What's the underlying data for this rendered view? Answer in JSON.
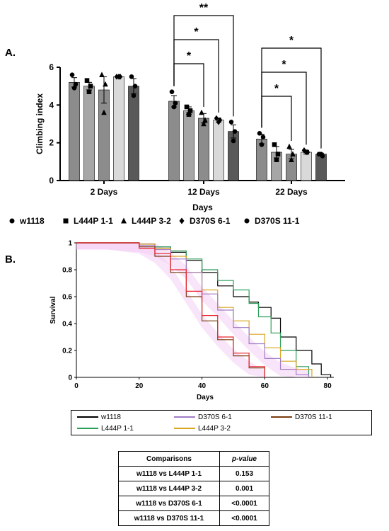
{
  "panel_a_label": "A.",
  "panel_b_label": "B.",
  "chart_data": [
    {
      "type": "bar",
      "ylabel": "Climbing index",
      "xlabel": "Days",
      "ylim": [
        0,
        6
      ],
      "yticks": [
        "0",
        "2",
        "4",
        "6"
      ],
      "categories": [
        "2 Days",
        "12 Days",
        "22 Days"
      ],
      "series": [
        {
          "name": "w1118",
          "marker": "circle",
          "color": "#8c8c8c",
          "values": [
            5.2,
            4.2,
            2.2
          ],
          "errors": [
            0.25,
            0.3,
            0.25
          ],
          "points": [
            [
              5.6,
              5.1,
              4.9
            ],
            [
              4.7,
              4.1,
              3.9
            ],
            [
              2.5,
              2.3,
              1.9
            ]
          ]
        },
        {
          "name": "L444P 1-1",
          "marker": "square",
          "color": "#a6a6a6",
          "values": [
            5.0,
            3.7,
            1.5
          ],
          "errors": [
            0.2,
            0.2,
            0.3
          ],
          "points": [
            [
              5.3,
              5.0,
              4.7
            ],
            [
              3.9,
              3.7,
              3.5
            ],
            [
              1.9,
              1.4,
              1.1
            ]
          ]
        },
        {
          "name": "L444P 3-2",
          "marker": "triangle",
          "color": "#8c8c8c",
          "values": [
            4.8,
            3.3,
            1.4
          ],
          "errors": [
            0.7,
            0.25,
            0.25
          ],
          "points": [
            [
              5.6,
              5.1,
              3.6
            ],
            [
              3.6,
              3.2,
              3.0
            ],
            [
              1.8,
              1.4,
              1.1
            ]
          ]
        },
        {
          "name": "D370S 6-1",
          "marker": "diamond",
          "color": "#d9d9d9",
          "values": [
            5.5,
            3.2,
            1.5
          ],
          "errors": [
            0.05,
            0.1,
            0.1
          ],
          "points": [
            [
              5.5,
              5.5,
              5.5
            ],
            [
              3.3,
              3.2,
              3.1
            ],
            [
              1.6,
              1.5,
              1.5
            ]
          ]
        },
        {
          "name": "D370S 11-1",
          "marker": "circle",
          "color": "#595959",
          "values": [
            5.0,
            2.6,
            1.4
          ],
          "errors": [
            0.4,
            0.35,
            0.05
          ],
          "points": [
            [
              5.5,
              5.0,
              4.5
            ],
            [
              3.1,
              2.6,
              2.1
            ],
            [
              1.4,
              1.3,
              1.4
            ]
          ]
        }
      ],
      "significance": [
        {
          "group": "12 Days",
          "from": "w1118",
          "to": "L444P 3-2",
          "label": "*"
        },
        {
          "group": "12 Days",
          "from": "w1118",
          "to": "D370S 6-1",
          "label": "*"
        },
        {
          "group": "12 Days",
          "from": "w1118",
          "to": "D370S 11-1",
          "label": "**"
        },
        {
          "group": "22 Days",
          "from": "w1118",
          "to": "L444P 3-2",
          "label": "*"
        },
        {
          "group": "22 Days",
          "from": "w1118",
          "to": "D370S 6-1",
          "label": "*"
        },
        {
          "group": "22 Days",
          "from": "w1118",
          "to": "D370S 11-1",
          "label": "*"
        }
      ],
      "legend": "bottom"
    },
    {
      "type": "line",
      "step": true,
      "ylabel": "Survival",
      "xlabel": "Days",
      "xlim": [
        0,
        82
      ],
      "ylim": [
        0,
        1
      ],
      "xticks": [
        0,
        20,
        40,
        60,
        80
      ],
      "yticks": [
        "0",
        "0.2",
        "0.4",
        "0.6",
        "0.8",
        "1"
      ],
      "series": [
        {
          "name": "w1118",
          "color": "#000000",
          "x": [
            0,
            10,
            20,
            25,
            30,
            35,
            40,
            45,
            50,
            55,
            58,
            62,
            65,
            70,
            75,
            78,
            81
          ],
          "y": [
            1,
            1,
            0.99,
            0.97,
            0.93,
            0.87,
            0.78,
            0.68,
            0.6,
            0.56,
            0.52,
            0.44,
            0.3,
            0.2,
            0.1,
            0.02,
            0
          ]
        },
        {
          "name": "L444P 1-1",
          "color": "#2e9e5b",
          "x": [
            0,
            10,
            20,
            25,
            30,
            35,
            40,
            45,
            50,
            55,
            58,
            62,
            65,
            70,
            74
          ],
          "y": [
            1,
            1,
            0.99,
            0.97,
            0.94,
            0.88,
            0.8,
            0.72,
            0.65,
            0.55,
            0.45,
            0.33,
            0.2,
            0.08,
            0
          ]
        },
        {
          "name": "L444P 3-2",
          "color": "#d9a520",
          "x": [
            0,
            10,
            20,
            25,
            30,
            35,
            40,
            45,
            50,
            55,
            60,
            65,
            70,
            75
          ],
          "y": [
            1,
            1,
            0.99,
            0.96,
            0.9,
            0.78,
            0.65,
            0.52,
            0.42,
            0.32,
            0.22,
            0.12,
            0.06,
            0
          ]
        },
        {
          "name": "D370S  6-1",
          "color": "#a07cc5",
          "x": [
            0,
            10,
            20,
            25,
            30,
            35,
            40,
            45,
            50,
            55,
            60,
            65,
            70,
            74
          ],
          "y": [
            1,
            1,
            0.98,
            0.95,
            0.88,
            0.78,
            0.62,
            0.5,
            0.37,
            0.25,
            0.14,
            0.06,
            0.02,
            0
          ]
        },
        {
          "name": "D370S 11-1",
          "color": "#7a3b10",
          "x": [
            0,
            10,
            20,
            25,
            30,
            35,
            40,
            45,
            50,
            55,
            60
          ],
          "y": [
            1,
            1,
            0.97,
            0.9,
            0.78,
            0.6,
            0.42,
            0.28,
            0.16,
            0.07,
            0
          ]
        },
        {
          "name": "",
          "color": "#e8252b",
          "x": [
            0,
            10,
            20,
            25,
            30,
            35,
            40,
            45,
            50,
            55,
            60
          ],
          "y": [
            1,
            1,
            0.96,
            0.92,
            0.8,
            0.64,
            0.46,
            0.3,
            0.18,
            0.08,
            0
          ]
        }
      ],
      "legend": "below"
    }
  ],
  "comparisons_table": {
    "headers": [
      "Comparisons",
      "p-value"
    ],
    "rows": [
      [
        "w1118 vs L444P 1-1",
        "0.153"
      ],
      [
        "w1118 vs L444P 3-2",
        "0.001"
      ],
      [
        "w1118 vs D370S 6-1",
        "<0.0001"
      ],
      [
        "w1118 vs D370S 11-1",
        "<0.0001"
      ]
    ]
  }
}
